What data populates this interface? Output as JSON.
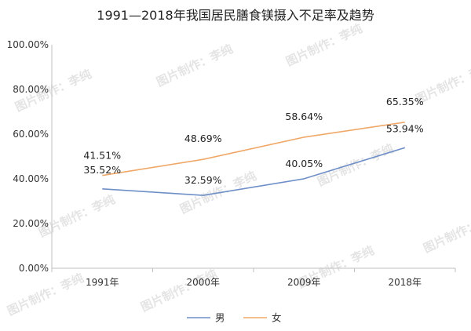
{
  "watermark_text": "图片制作：李纯",
  "chart_data": {
    "type": "line",
    "title": "1991—2018年我国居民膳食镁摄入不足率及趋势",
    "xlabel": "",
    "ylabel": "",
    "categories": [
      "1991年",
      "2000年",
      "2009年",
      "2018年"
    ],
    "ylim": [
      0,
      100
    ],
    "yticks": [
      "0.00%",
      "20.00%",
      "40.00%",
      "60.00%",
      "80.00%",
      "100.00%"
    ],
    "grid": false,
    "legend_position": "bottom",
    "series": [
      {
        "name": "男",
        "color": "#6f8fc8",
        "values": [
          35.52,
          32.59,
          40.05,
          53.94
        ],
        "labels": [
          "35.52%",
          "32.59%",
          "40.05%",
          "53.94%"
        ]
      },
      {
        "name": "女",
        "color": "#f0a868",
        "values": [
          41.51,
          48.69,
          58.64,
          65.35
        ],
        "labels": [
          "41.51%",
          "48.69%",
          "58.64%",
          "65.35%"
        ]
      }
    ]
  }
}
